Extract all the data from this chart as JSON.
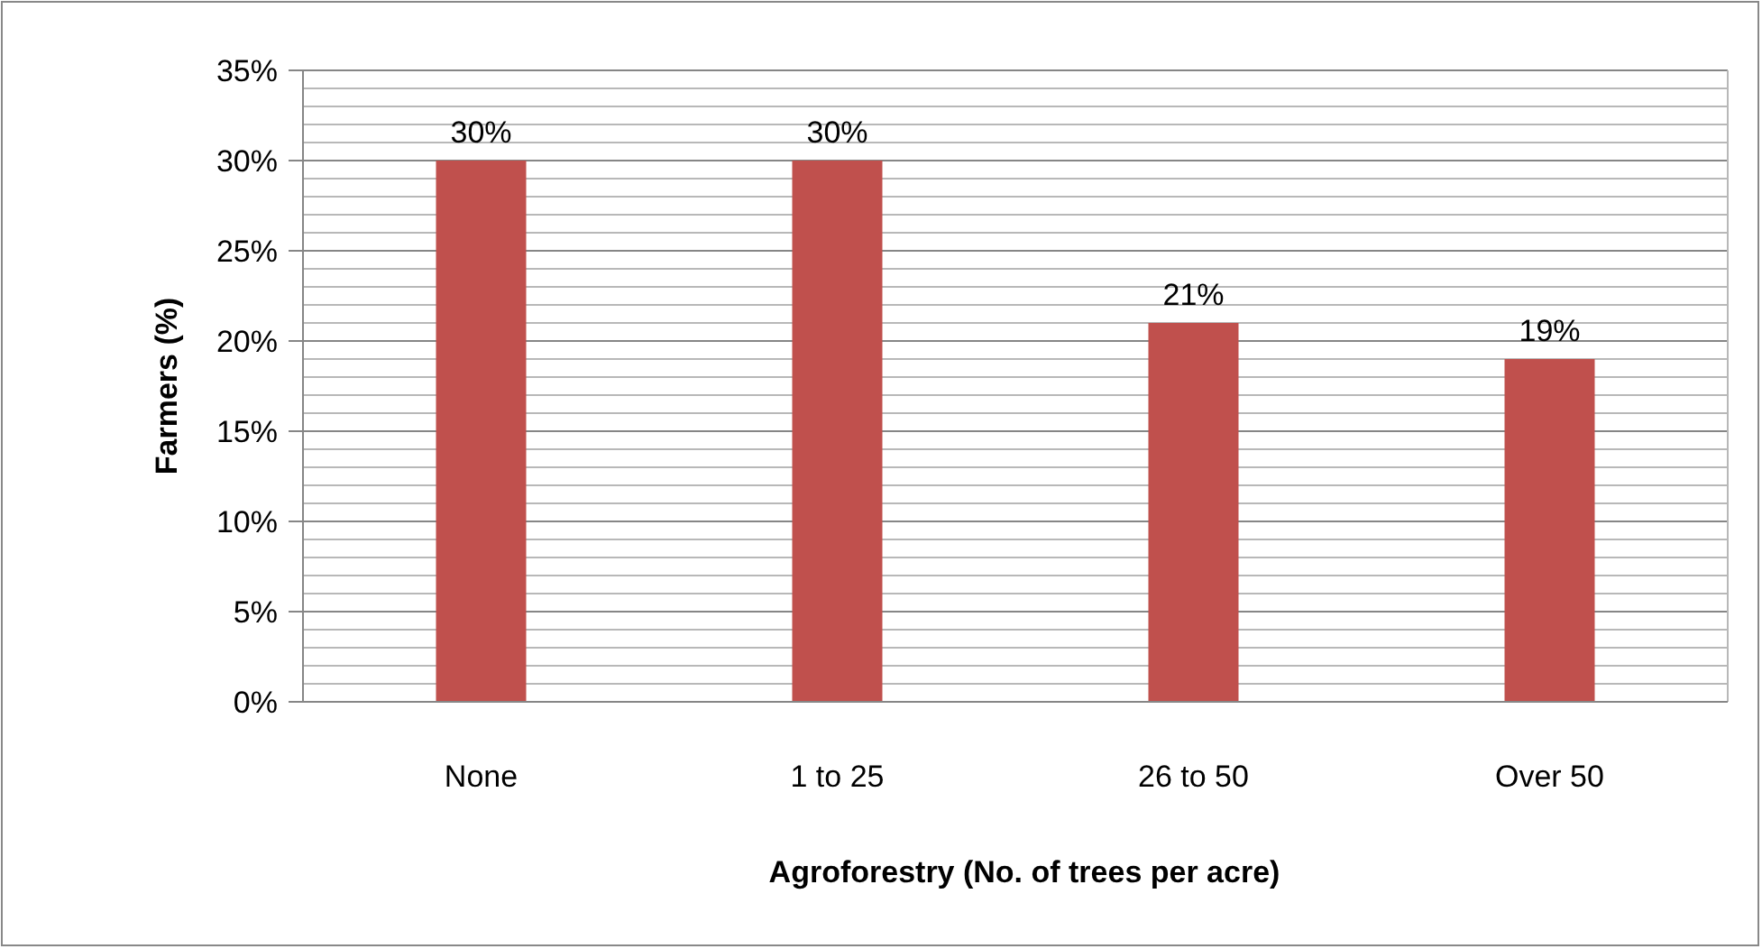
{
  "chart_data": {
    "type": "bar",
    "xlabel": "Agroforestry (No. of trees per acre)",
    "ylabel": "Farmers (%)",
    "categories": [
      "None",
      "1 to 25",
      "26 to 50",
      "Over 50"
    ],
    "values": [
      30,
      30,
      21,
      19
    ],
    "color": "#c0504d",
    "value_labels": [
      "30%",
      "30%",
      "21%",
      "19%"
    ],
    "ylim": [
      0,
      35
    ],
    "yticks": [
      {
        "value": 0,
        "label": "0%"
      },
      {
        "value": 1,
        "label": null
      },
      {
        "value": 2,
        "label": null
      },
      {
        "value": 3,
        "label": null
      },
      {
        "value": 4,
        "label": null
      },
      {
        "value": 5,
        "label": "5%"
      },
      {
        "value": 6,
        "label": null
      },
      {
        "value": 7,
        "label": null
      },
      {
        "value": 8,
        "label": null
      },
      {
        "value": 9,
        "label": null
      },
      {
        "value": 10,
        "label": "10%"
      },
      {
        "value": 11,
        "label": null
      },
      {
        "value": 12,
        "label": null
      },
      {
        "value": 13,
        "label": null
      },
      {
        "value": 14,
        "label": null
      },
      {
        "value": 15,
        "label": "15%"
      },
      {
        "value": 16,
        "label": null
      },
      {
        "value": 17,
        "label": null
      },
      {
        "value": 18,
        "label": null
      },
      {
        "value": 19,
        "label": null
      },
      {
        "value": 20,
        "label": "20%"
      },
      {
        "value": 21,
        "label": null
      },
      {
        "value": 22,
        "label": null
      },
      {
        "value": 23,
        "label": null
      },
      {
        "value": 24,
        "label": null
      },
      {
        "value": 25,
        "label": "25%"
      },
      {
        "value": 26,
        "label": null
      },
      {
        "value": 27,
        "label": null
      },
      {
        "value": 28,
        "label": null
      },
      {
        "value": 29,
        "label": null
      },
      {
        "value": 30,
        "label": "30%"
      },
      {
        "value": 31,
        "label": null
      },
      {
        "value": 32,
        "label": null
      },
      {
        "value": 33,
        "label": null
      },
      {
        "value": 34,
        "label": null
      },
      {
        "value": 35,
        "label": "35%"
      }
    ],
    "grid": "y"
  }
}
